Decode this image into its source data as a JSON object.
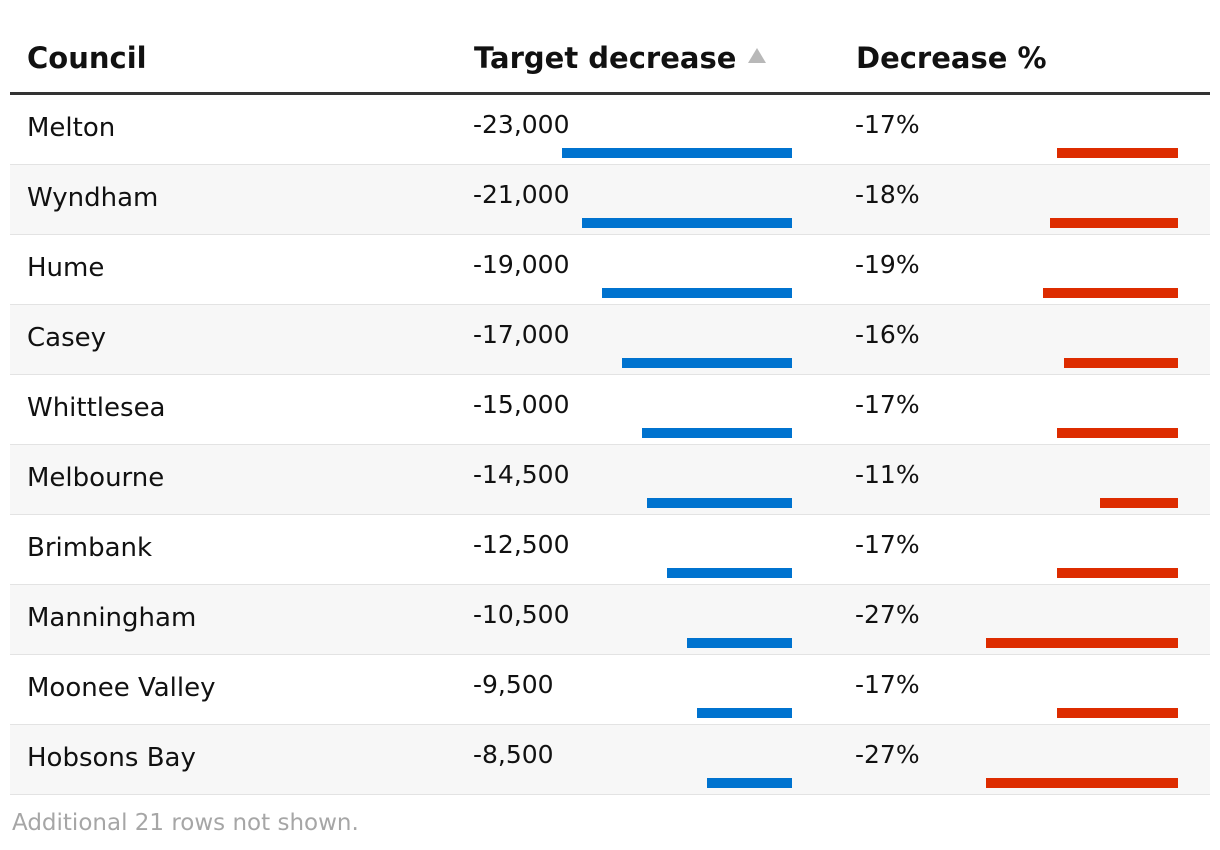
{
  "chart_data": {
    "type": "table",
    "columns": [
      "Council",
      "Target decrease",
      "Decrease %"
    ],
    "sort_indicator": "▲",
    "rows": [
      {
        "council": "Melton",
        "target_label": "-23,000",
        "target": -23000,
        "pct_label": "-17%",
        "pct": -17
      },
      {
        "council": "Wyndham",
        "target_label": "-21,000",
        "target": -21000,
        "pct_label": "-18%",
        "pct": -18
      },
      {
        "council": "Hume",
        "target_label": "-19,000",
        "target": -19000,
        "pct_label": "-19%",
        "pct": -19
      },
      {
        "council": "Casey",
        "target_label": "-17,000",
        "target": -17000,
        "pct_label": "-16%",
        "pct": -16
      },
      {
        "council": "Whittlesea",
        "target_label": "-15,000",
        "target": -15000,
        "pct_label": "-17%",
        "pct": -17
      },
      {
        "council": "Melbourne",
        "target_label": "-14,500",
        "target": -14500,
        "pct_label": "-11%",
        "pct": -11
      },
      {
        "council": "Brimbank",
        "target_label": "-12,500",
        "target": -12500,
        "pct_label": "-17%",
        "pct": -17
      },
      {
        "council": "Manningham",
        "target_label": "-10,500",
        "target": -10500,
        "pct_label": "-27%",
        "pct": -27
      },
      {
        "council": "Moonee Valley",
        "target_label": "-9,500",
        "target": -9500,
        "pct_label": "-17%",
        "pct": -17
      },
      {
        "council": "Hobsons Bay",
        "target_label": "-8,500",
        "target": -8500,
        "pct_label": "-27%",
        "pct": -27
      }
    ],
    "target_range": [
      -40000,
      0
    ],
    "pct_range": [
      -45,
      0
    ],
    "footnote": "Additional 21 rows not shown."
  },
  "colors": {
    "target_bar": "#0073cf",
    "pct_bar": "#dd2c00",
    "header_rule": "#333333",
    "alt_row": "#f7f7f7",
    "footnote": "#a6a6a6"
  }
}
